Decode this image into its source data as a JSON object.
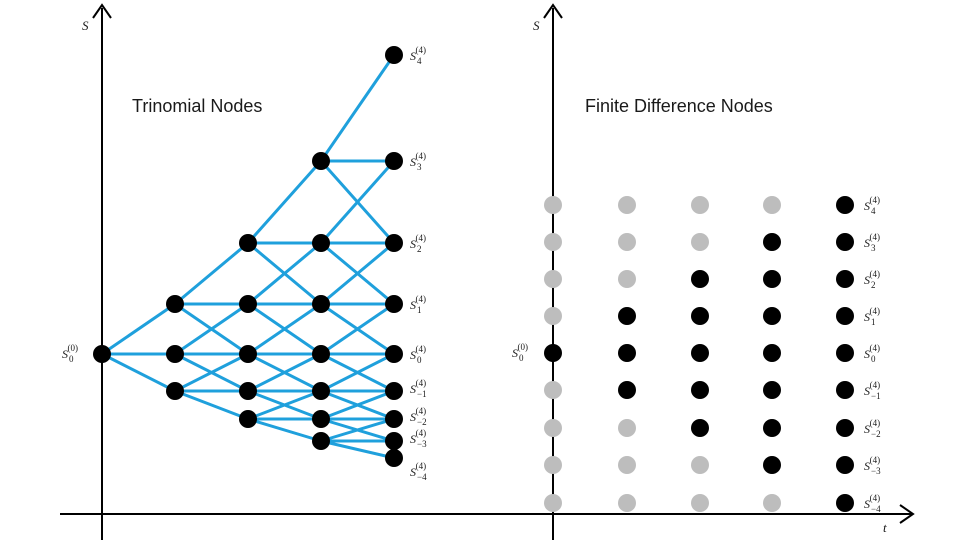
{
  "left_panel": {
    "title": "Trinomial Nodes",
    "y_axis_label": "S",
    "start_label": {
      "base": "S",
      "sub": "0",
      "sup": "(0)"
    },
    "terminal_labels": [
      {
        "base": "S",
        "sub": "4",
        "sup": "(4)"
      },
      {
        "base": "S",
        "sub": "3",
        "sup": "(4)"
      },
      {
        "base": "S",
        "sub": "2",
        "sup": "(4)"
      },
      {
        "base": "S",
        "sub": "1",
        "sup": "(4)"
      },
      {
        "base": "S",
        "sub": "0",
        "sup": "(4)"
      },
      {
        "base": "S",
        "sub": "−1",
        "sup": "(4)"
      },
      {
        "base": "S",
        "sub": "−2",
        "sup": "(4)"
      },
      {
        "base": "S",
        "sub": "−3",
        "sup": "(4)"
      },
      {
        "base": "S",
        "sub": "−4",
        "sup": "(4)"
      }
    ]
  },
  "right_panel": {
    "title": "Finite Difference Nodes",
    "y_axis_label": "S",
    "x_axis_label": "t",
    "start_label": {
      "base": "S",
      "sub": "0",
      "sup": "(0)"
    },
    "terminal_labels": [
      {
        "base": "S",
        "sub": "4",
        "sup": "(4)"
      },
      {
        "base": "S",
        "sub": "3",
        "sup": "(4)"
      },
      {
        "base": "S",
        "sub": "2",
        "sup": "(4)"
      },
      {
        "base": "S",
        "sub": "1",
        "sup": "(4)"
      },
      {
        "base": "S",
        "sub": "0",
        "sup": "(4)"
      },
      {
        "base": "S",
        "sub": "−1",
        "sup": "(4)"
      },
      {
        "base": "S",
        "sub": "−2",
        "sup": "(4)"
      },
      {
        "base": "S",
        "sub": "−3",
        "sup": "(4)"
      },
      {
        "base": "S",
        "sub": "−4",
        "sup": "(4)"
      }
    ]
  },
  "colors": {
    "edge": "#1fa0dc",
    "active_node": "#000000",
    "inactive_node": "#bdbdbd",
    "axis": "#000000"
  }
}
